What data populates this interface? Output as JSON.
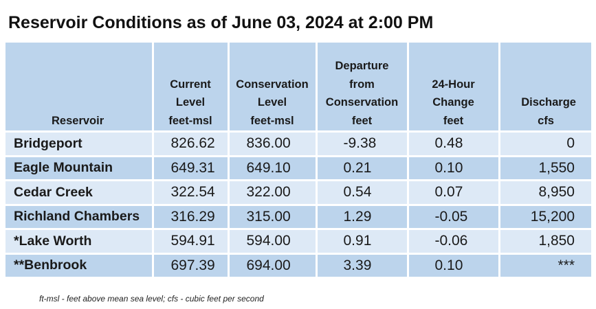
{
  "title": "Reservoir Conditions as of June 03, 2024 at 2:00 PM",
  "columns": [
    {
      "lines": [
        "Reservoir"
      ]
    },
    {
      "lines": [
        "Current",
        "Level",
        "feet-msl"
      ]
    },
    {
      "lines": [
        "Conservation",
        "Level",
        "feet-msl"
      ]
    },
    {
      "lines": [
        "Departure",
        "from",
        "Conservation",
        "feet"
      ]
    },
    {
      "lines": [
        "24-Hour",
        "Change",
        "feet"
      ]
    },
    {
      "lines": [
        "Discharge",
        "cfs"
      ]
    }
  ],
  "rows": [
    {
      "name": "Bridgeport",
      "current": "826.62",
      "conservation": "836.00",
      "departure": "-9.38",
      "change": "0.48",
      "discharge": "0"
    },
    {
      "name": "Eagle Mountain",
      "current": "649.31",
      "conservation": "649.10",
      "departure": "0.21",
      "change": "0.10",
      "discharge": "1,550"
    },
    {
      "name": "Cedar Creek",
      "current": "322.54",
      "conservation": "322.00",
      "departure": "0.54",
      "change": "0.07",
      "discharge": "8,950"
    },
    {
      "name": "Richland Chambers",
      "current": "316.29",
      "conservation": "315.00",
      "departure": "1.29",
      "change": "-0.05",
      "discharge": "15,200"
    },
    {
      "name": "*Lake Worth",
      "current": "594.91",
      "conservation": "594.00",
      "departure": "0.91",
      "change": "-0.06",
      "discharge": "1,850"
    },
    {
      "name": "**Benbrook",
      "current": "697.39",
      "conservation": "694.00",
      "departure": "3.39",
      "change": "0.10",
      "discharge": "***"
    }
  ],
  "footnote": "ft-msl - feet above mean sea level; cfs - cubic feet per second",
  "colors": {
    "header_bg": "#bcd4ec",
    "row_light": "#dde9f6",
    "row_dark": "#bcd4ec"
  }
}
